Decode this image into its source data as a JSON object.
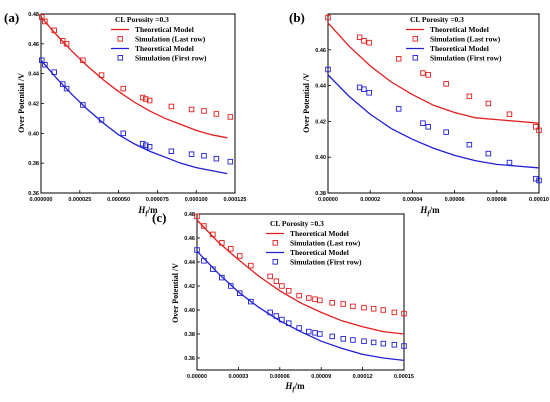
{
  "chart_data": [
    {
      "panel": "(a)",
      "type": "line+scatter",
      "xlabel": "Hf/m",
      "ylabel": "Over Potential /V",
      "xlim": [
        0,
        0.000125
      ],
      "ylim": [
        0.36,
        0.48
      ],
      "xticks": [
        "0.000000",
        "0.000025",
        "0.000050",
        "0.000075",
        "0.000100",
        "0.000125"
      ],
      "yticks": [
        "0.36",
        "0.38",
        "0.40",
        "0.42",
        "0.44",
        "0.46",
        "0.48"
      ],
      "annotation": "CL Porosity =0.3",
      "series": [
        {
          "name": "Theoretical Model",
          "kind": "line",
          "color": "#e41c1c",
          "x": [
            0,
            1e-05,
            2e-05,
            3e-05,
            4e-05,
            5e-05,
            6e-05,
            7e-05,
            8e-05,
            9e-05,
            0.0001,
            0.00011,
            0.00012
          ],
          "y": [
            0.478,
            0.466,
            0.455,
            0.445,
            0.436,
            0.428,
            0.421,
            0.415,
            0.41,
            0.406,
            0.402,
            0.399,
            0.397
          ]
        },
        {
          "name": "Simulation (Last row)",
          "kind": "scatter",
          "color": "#e41c1c",
          "x": [
            5e-07,
            2.5e-06,
            8.5e-06,
            1.4e-05,
            1.65e-05,
            2.7e-05,
            3.9e-05,
            5.3e-05,
            6.55e-05,
            6.75e-05,
            7e-05,
            8.4e-05,
            9.7e-05,
            0.000105,
            0.000113,
            0.000122
          ],
          "y": [
            0.478,
            0.475,
            0.469,
            0.462,
            0.46,
            0.449,
            0.439,
            0.43,
            0.424,
            0.423,
            0.422,
            0.418,
            0.416,
            0.415,
            0.413,
            0.411
          ]
        },
        {
          "name": "Theoretical Model",
          "kind": "line",
          "color": "#1f1fd6",
          "x": [
            0,
            1e-05,
            2e-05,
            3e-05,
            4e-05,
            5e-05,
            6e-05,
            7e-05,
            8e-05,
            9e-05,
            0.0001,
            0.00011,
            0.00012
          ],
          "y": [
            0.449,
            0.437,
            0.426,
            0.416,
            0.407,
            0.399,
            0.393,
            0.388,
            0.384,
            0.38,
            0.377,
            0.375,
            0.373
          ]
        },
        {
          "name": "Simulation (First row)",
          "kind": "scatter",
          "color": "#1f1fd6",
          "x": [
            5e-07,
            2.5e-06,
            8.5e-06,
            1.4e-05,
            1.65e-05,
            2.7e-05,
            3.9e-05,
            5.3e-05,
            6.55e-05,
            6.75e-05,
            7e-05,
            8.4e-05,
            9.7e-05,
            0.000105,
            0.000113,
            0.000122
          ],
          "y": [
            0.449,
            0.446,
            0.441,
            0.433,
            0.43,
            0.419,
            0.409,
            0.4,
            0.393,
            0.392,
            0.391,
            0.388,
            0.386,
            0.385,
            0.383,
            0.381
          ]
        }
      ]
    },
    {
      "panel": "(b)",
      "type": "line+scatter",
      "xlabel": "Hf/m",
      "ylabel": "Over Potential /V",
      "xlim": [
        0,
        0.0001
      ],
      "ylim": [
        0.38,
        0.48
      ],
      "xticks": [
        "0.00000",
        "0.00002",
        "0.00004",
        "0.00006",
        "0.00008",
        "0.00010"
      ],
      "yticks": [
        "0.38",
        "0.40",
        "0.42",
        "0.44",
        "0.46"
      ],
      "annotation": "CL Porosity =0.3",
      "series": [
        {
          "name": "Theoretical Model",
          "kind": "line",
          "color": "#e41c1c",
          "x": [
            0,
            1e-05,
            2e-05,
            3e-05,
            4e-05,
            5e-05,
            6e-05,
            7e-05,
            8e-05,
            9e-05,
            0.0001
          ],
          "y": [
            0.475,
            0.462,
            0.451,
            0.442,
            0.435,
            0.429,
            0.425,
            0.422,
            0.421,
            0.42,
            0.419
          ]
        },
        {
          "name": "Simulation (Last row)",
          "kind": "scatter",
          "color": "#e41c1c",
          "x": [
            0,
            1.5e-05,
            1.7e-05,
            1.95e-05,
            3.35e-05,
            4.5e-05,
            4.75e-05,
            5.6e-05,
            6.7e-05,
            7.6e-05,
            8.6e-05,
            9.85e-05,
            0.0001
          ],
          "y": [
            0.478,
            0.467,
            0.465,
            0.464,
            0.455,
            0.447,
            0.446,
            0.441,
            0.434,
            0.43,
            0.424,
            0.417,
            0.415
          ]
        },
        {
          "name": "Theoretical Model",
          "kind": "line",
          "color": "#1f1fd6",
          "x": [
            0,
            1e-05,
            2e-05,
            3e-05,
            4e-05,
            5e-05,
            6e-05,
            7e-05,
            8e-05,
            9e-05,
            0.0001
          ],
          "y": [
            0.446,
            0.434,
            0.424,
            0.416,
            0.41,
            0.405,
            0.401,
            0.398,
            0.396,
            0.395,
            0.394
          ]
        },
        {
          "name": "Simulation (First row)",
          "kind": "scatter",
          "color": "#1f1fd6",
          "x": [
            0,
            1.5e-05,
            1.7e-05,
            1.95e-05,
            3.35e-05,
            4.5e-05,
            4.75e-05,
            5.6e-05,
            6.7e-05,
            7.6e-05,
            8.6e-05,
            9.85e-05,
            0.0001
          ],
          "y": [
            0.449,
            0.439,
            0.438,
            0.436,
            0.427,
            0.419,
            0.417,
            0.414,
            0.407,
            0.402,
            0.397,
            0.388,
            0.387
          ]
        }
      ]
    },
    {
      "panel": "(c)",
      "type": "line+scatter",
      "xlabel": "Hf/m",
      "ylabel": "Over Potential /V",
      "xlim": [
        0,
        0.00015
      ],
      "ylim": [
        0.35,
        0.48
      ],
      "xticks": [
        "0.00000",
        "0.00003",
        "0.00006",
        "0.00009",
        "0.00012",
        "0.00015"
      ],
      "yticks": [
        "0.36",
        "0.38",
        "0.40",
        "0.42",
        "0.44",
        "0.46",
        "0.48"
      ],
      "annotation": "CL Porosity =0.3",
      "series": [
        {
          "name": "Theoretical Model",
          "kind": "line",
          "color": "#e41c1c",
          "x": [
            0,
            1.5e-05,
            3e-05,
            4.5e-05,
            6e-05,
            7.5e-05,
            9e-05,
            0.000105,
            0.00012,
            0.000135,
            0.00015
          ],
          "y": [
            0.475,
            0.457,
            0.442,
            0.428,
            0.416,
            0.406,
            0.398,
            0.391,
            0.386,
            0.382,
            0.38
          ]
        },
        {
          "name": "Simulation (Last row)",
          "kind": "scatter",
          "color": "#e41c1c",
          "x": [
            0,
            5e-06,
            1.15e-05,
            1.8e-05,
            2.45e-05,
            3.1e-05,
            3.9e-05,
            5.3e-05,
            5.75e-05,
            6.15e-05,
            6.65e-05,
            7.4e-05,
            8.1e-05,
            8.55e-05,
            8.9e-05,
            9.8e-05,
            0.000106,
            0.000113,
            0.000121,
            0.000128,
            0.000135,
            0.000143,
            0.00015
          ],
          "y": [
            0.478,
            0.47,
            0.463,
            0.456,
            0.451,
            0.445,
            0.437,
            0.428,
            0.424,
            0.42,
            0.416,
            0.412,
            0.41,
            0.409,
            0.408,
            0.406,
            0.405,
            0.403,
            0.402,
            0.401,
            0.4,
            0.398,
            0.397
          ]
        },
        {
          "name": "Theoretical Model",
          "kind": "line",
          "color": "#1f1fd6",
          "x": [
            0,
            1.5e-05,
            3e-05,
            4.5e-05,
            6e-05,
            7.5e-05,
            9e-05,
            0.000105,
            0.00012,
            0.000135,
            0.00015
          ],
          "y": [
            0.449,
            0.431,
            0.415,
            0.402,
            0.391,
            0.382,
            0.374,
            0.368,
            0.363,
            0.36,
            0.358
          ]
        },
        {
          "name": "Simulation (First row)",
          "kind": "scatter",
          "color": "#1f1fd6",
          "x": [
            0,
            5e-06,
            1.15e-05,
            1.8e-05,
            2.45e-05,
            3.1e-05,
            3.9e-05,
            5.3e-05,
            5.75e-05,
            6.15e-05,
            6.65e-05,
            7.4e-05,
            8.1e-05,
            8.55e-05,
            8.9e-05,
            9.8e-05,
            0.000106,
            0.000113,
            0.000121,
            0.000128,
            0.000135,
            0.000143,
            0.00015
          ],
          "y": [
            0.45,
            0.441,
            0.434,
            0.427,
            0.42,
            0.414,
            0.407,
            0.398,
            0.395,
            0.392,
            0.389,
            0.385,
            0.382,
            0.381,
            0.38,
            0.378,
            0.376,
            0.375,
            0.374,
            0.373,
            0.372,
            0.371,
            0.37
          ]
        }
      ]
    }
  ]
}
